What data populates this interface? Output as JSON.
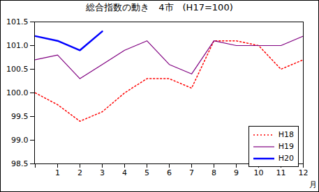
{
  "chart_data": {
    "type": "line",
    "title": "総合指数の動き　4市　(H17=100)",
    "x_label": "月",
    "categories": [
      null,
      "1",
      "2",
      "3",
      "4",
      "5",
      "6",
      "7",
      "8",
      "9",
      "10",
      "11",
      "12"
    ],
    "series": [
      {
        "name": "H18",
        "color": "#ff0000",
        "line_style": "dotted",
        "values": [
          100.0,
          99.75,
          99.4,
          99.6,
          100.0,
          100.3,
          100.3,
          100.1,
          101.1,
          101.1,
          101.0,
          100.5,
          100.7
        ]
      },
      {
        "name": "H19",
        "color": "#800080",
        "line_style": "solid",
        "values": [
          100.7,
          100.8,
          100.3,
          100.6,
          100.9,
          101.1,
          100.6,
          100.4,
          101.1,
          101.0,
          101.0,
          101.0,
          101.2
        ]
      },
      {
        "name": "H20",
        "color": "#0000ff",
        "line_style": "thick",
        "values": [
          101.2,
          101.1,
          100.9,
          101.3,
          null,
          null,
          null,
          null,
          null,
          null,
          null,
          null,
          null
        ]
      }
    ],
    "ylim": [
      98.5,
      101.5
    ],
    "yticks": [
      98.5,
      {
        "value": 99,
        "label": "99.0"
      },
      99.5,
      {
        "value": 100,
        "label": "100.0"
      },
      100.5,
      {
        "value": 101,
        "label": "101.0"
      },
      101.5
    ],
    "grid": false,
    "legend": "bottom-right"
  }
}
